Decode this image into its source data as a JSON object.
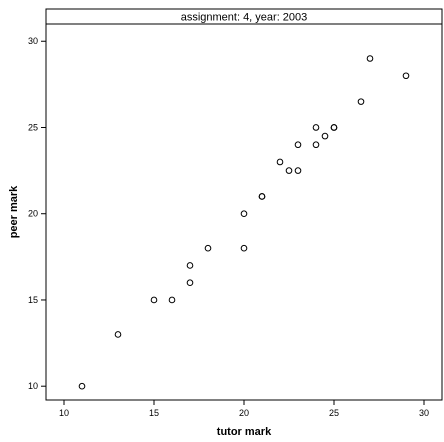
{
  "chart_data": {
    "type": "scatter",
    "title": "assignment: 4, year: 2003",
    "xlabel": "tutor mark",
    "ylabel": "peer mark",
    "xlim": [
      9,
      31
    ],
    "ylim": [
      9.2,
      31
    ],
    "xticks": [
      10,
      15,
      20,
      25,
      30
    ],
    "yticks": [
      10,
      15,
      20,
      25,
      30
    ],
    "grid": false,
    "legend": "none",
    "marker": "open-circle",
    "points": [
      {
        "x": 11,
        "y": 10
      },
      {
        "x": 13,
        "y": 13
      },
      {
        "x": 15,
        "y": 15
      },
      {
        "x": 16,
        "y": 15
      },
      {
        "x": 17,
        "y": 16
      },
      {
        "x": 17,
        "y": 17
      },
      {
        "x": 18,
        "y": 18
      },
      {
        "x": 20,
        "y": 18
      },
      {
        "x": 20,
        "y": 20
      },
      {
        "x": 21,
        "y": 21
      },
      {
        "x": 21,
        "y": 21
      },
      {
        "x": 22,
        "y": 23
      },
      {
        "x": 22.5,
        "y": 22.5
      },
      {
        "x": 23,
        "y": 22.5
      },
      {
        "x": 23,
        "y": 24
      },
      {
        "x": 24,
        "y": 24
      },
      {
        "x": 24,
        "y": 25
      },
      {
        "x": 24.5,
        "y": 24.5
      },
      {
        "x": 25,
        "y": 25
      },
      {
        "x": 25,
        "y": 25
      },
      {
        "x": 26.5,
        "y": 26.5
      },
      {
        "x": 27,
        "y": 29
      },
      {
        "x": 29,
        "y": 28
      }
    ]
  }
}
